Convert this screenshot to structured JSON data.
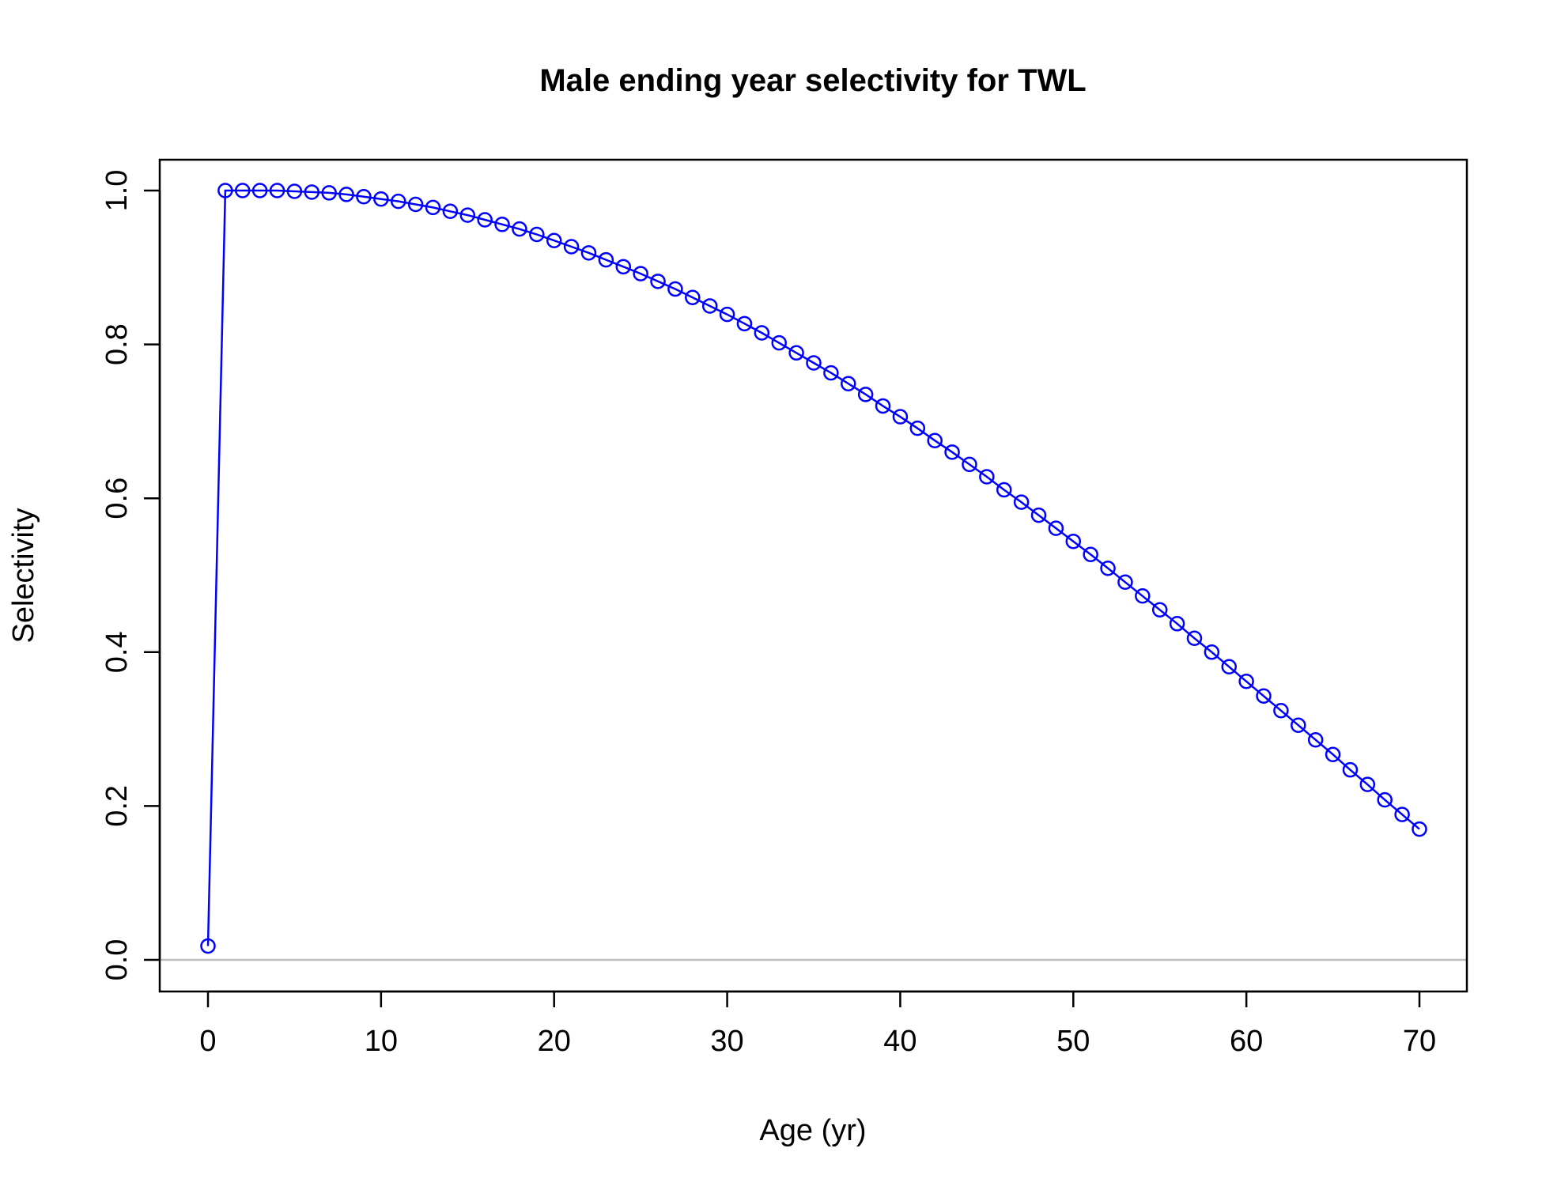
{
  "chart_data": {
    "type": "line",
    "title": "Male ending year selectivity for TWL",
    "xlabel": "Age (yr)",
    "ylabel": "Selectivity",
    "xlim": [
      0,
      70
    ],
    "ylim": [
      0,
      1
    ],
    "xticks": [
      0,
      10,
      20,
      30,
      40,
      50,
      60,
      70
    ],
    "yticks": [
      0.0,
      0.2,
      0.4,
      0.6,
      0.8,
      1.0
    ],
    "xtick_labels": [
      "0",
      "10",
      "20",
      "30",
      "40",
      "50",
      "60",
      "70"
    ],
    "ytick_labels": [
      "0.0",
      "0.2",
      "0.4",
      "0.6",
      "0.8",
      "1.0"
    ],
    "grid": false,
    "reference_line": {
      "y": 0,
      "color": "#bebebe"
    },
    "series": [
      {
        "color": "#0000ff",
        "marker": "open-circle",
        "x": [
          0,
          1,
          2,
          3,
          4,
          5,
          6,
          7,
          8,
          9,
          10,
          11,
          12,
          13,
          14,
          15,
          16,
          17,
          18,
          19,
          20,
          21,
          22,
          23,
          24,
          25,
          26,
          27,
          28,
          29,
          30,
          31,
          32,
          33,
          34,
          35,
          36,
          37,
          38,
          39,
          40,
          41,
          42,
          43,
          44,
          45,
          46,
          47,
          48,
          49,
          50,
          51,
          52,
          53,
          54,
          55,
          56,
          57,
          58,
          59,
          60,
          61,
          62,
          63,
          64,
          65,
          66,
          67,
          68,
          69,
          70
        ],
        "values": [
          0.018,
          1.0,
          1.0,
          1.0,
          1.0,
          0.999,
          0.998,
          0.997,
          0.995,
          0.992,
          0.989,
          0.986,
          0.982,
          0.978,
          0.973,
          0.968,
          0.962,
          0.956,
          0.95,
          0.943,
          0.935,
          0.927,
          0.919,
          0.91,
          0.901,
          0.892,
          0.882,
          0.872,
          0.861,
          0.85,
          0.839,
          0.827,
          0.815,
          0.802,
          0.789,
          0.776,
          0.763,
          0.749,
          0.735,
          0.72,
          0.706,
          0.691,
          0.675,
          0.66,
          0.644,
          0.628,
          0.611,
          0.595,
          0.578,
          0.561,
          0.544,
          0.527,
          0.509,
          0.491,
          0.473,
          0.455,
          0.437,
          0.418,
          0.4,
          0.381,
          0.362,
          0.343,
          0.324,
          0.305,
          0.286,
          0.267,
          0.247,
          0.228,
          0.208,
          0.189,
          0.17
        ]
      }
    ]
  }
}
